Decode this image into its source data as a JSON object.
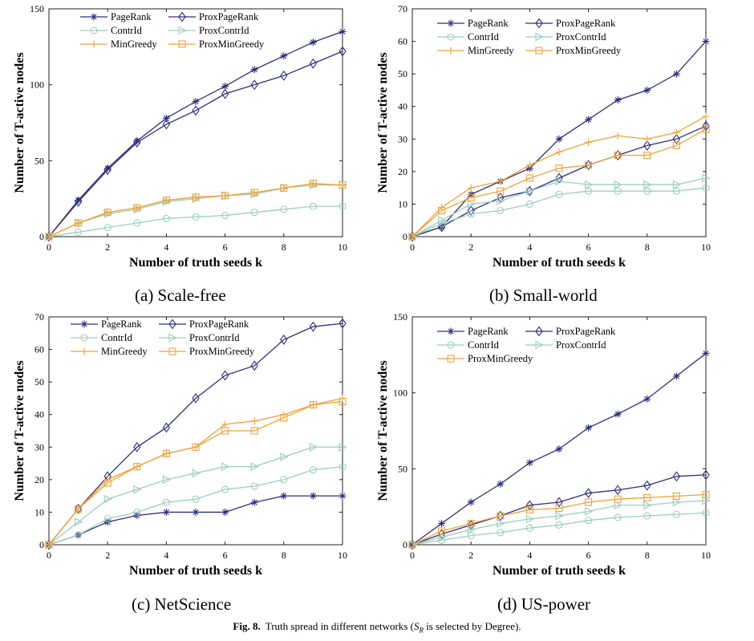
{
  "figure": {
    "label": "Fig. 8.",
    "caption_prefix": "Truth spread in different networks (",
    "caption_var": "S",
    "caption_sub": "R",
    "caption_suffix": " is selected by Degree)."
  },
  "styles": {
    "PageRank": {
      "color": "#2e2e7e",
      "marker": "star"
    },
    "ProxPageRank": {
      "color": "#2e2e7e",
      "marker": "diamond"
    },
    "ContrId": {
      "color": "#9ccfba",
      "marker": "circle"
    },
    "ProxContrId": {
      "color": "#9ccfba",
      "marker": "triangle"
    },
    "MinGreedy": {
      "color": "#f2a23a",
      "marker": "plus"
    },
    "ProxMinGreedy": {
      "color": "#f2a23a",
      "marker": "square"
    }
  },
  "chart_data": [
    {
      "type": "line",
      "caption": "(a) Scale-free",
      "xlabel": "Number of truth seeds k",
      "ylabel": "Number of T-active nodes",
      "x": [
        0,
        1,
        2,
        3,
        4,
        5,
        6,
        7,
        8,
        9,
        10
      ],
      "xticks": [
        0,
        2,
        4,
        6,
        8,
        10
      ],
      "yticks": [
        0,
        50,
        100,
        150
      ],
      "xlim": [
        0,
        10
      ],
      "ylim": [
        0,
        150
      ],
      "legend": {
        "columns": 2,
        "placement": "top-left"
      },
      "series": [
        {
          "name": "PageRank",
          "values": [
            0,
            24,
            45,
            63,
            78,
            89,
            99,
            110,
            119,
            128,
            135
          ]
        },
        {
          "name": "ProxPageRank",
          "values": [
            0,
            23,
            44,
            62,
            74,
            83,
            94,
            100,
            106,
            114,
            122
          ]
        },
        {
          "name": "ContrId",
          "values": [
            0,
            3,
            6,
            9,
            12,
            13,
            14,
            16,
            18,
            20,
            20
          ]
        },
        {
          "name": "ProxContrId",
          "values": [
            0,
            9,
            15,
            18,
            23,
            25,
            27,
            28,
            32,
            34,
            34
          ]
        },
        {
          "name": "MinGreedy",
          "values": [
            0,
            9,
            16,
            19,
            24,
            26,
            27,
            29,
            32,
            35,
            34
          ]
        },
        {
          "name": "ProxMinGreedy",
          "values": [
            0,
            9,
            16,
            19,
            24,
            26,
            27,
            29,
            32,
            35,
            34
          ]
        }
      ]
    },
    {
      "type": "line",
      "caption": "(b) Small-world",
      "xlabel": "Number of truth seeds k",
      "ylabel": "Number of T-active nodes",
      "x": [
        0,
        1,
        2,
        3,
        4,
        5,
        6,
        7,
        8,
        9,
        10
      ],
      "xticks": [
        0,
        2,
        4,
        6,
        8,
        10
      ],
      "yticks": [
        0,
        10,
        20,
        30,
        40,
        50,
        60,
        70
      ],
      "xlim": [
        0,
        10
      ],
      "ylim": [
        0,
        70
      ],
      "legend": {
        "columns": 2,
        "placement": "top-left"
      },
      "series": [
        {
          "name": "PageRank",
          "values": [
            0,
            3,
            13,
            17,
            21,
            30,
            36,
            42,
            45,
            50,
            60
          ]
        },
        {
          "name": "ProxPageRank",
          "values": [
            0,
            3,
            8,
            12,
            14,
            18,
            22,
            25,
            28,
            30,
            34
          ]
        },
        {
          "name": "ContrId",
          "values": [
            0,
            4,
            7,
            8,
            10,
            13,
            14,
            14,
            14,
            14,
            15
          ]
        },
        {
          "name": "ProxContrId",
          "values": [
            0,
            5,
            10,
            11,
            14,
            17,
            16,
            16,
            16,
            16,
            18
          ]
        },
        {
          "name": "MinGreedy",
          "values": [
            0,
            9,
            15,
            17,
            22,
            26,
            29,
            31,
            30,
            32,
            37
          ]
        },
        {
          "name": "ProxMinGreedy",
          "values": [
            0,
            8,
            12,
            14,
            18,
            21,
            22,
            25,
            25,
            28,
            33
          ]
        }
      ]
    },
    {
      "type": "line",
      "caption": "(c) NetScience",
      "xlabel": "Number of truth seeds k",
      "ylabel": "Number of T-active nodes",
      "x": [
        0,
        1,
        2,
        3,
        4,
        5,
        6,
        7,
        8,
        9,
        10
      ],
      "xticks": [
        0,
        2,
        4,
        6,
        8,
        10
      ],
      "yticks": [
        0,
        10,
        20,
        30,
        40,
        50,
        60,
        70
      ],
      "xlim": [
        0,
        10
      ],
      "ylim": [
        0,
        70
      ],
      "legend": {
        "columns": 2,
        "placement": "top-left"
      },
      "series": [
        {
          "name": "PageRank",
          "values": [
            0,
            3,
            7,
            9,
            10,
            10,
            10,
            13,
            15,
            15,
            15
          ]
        },
        {
          "name": "ProxPageRank",
          "values": [
            0,
            11,
            21,
            30,
            36,
            45,
            52,
            55,
            63,
            67,
            68
          ]
        },
        {
          "name": "ContrId",
          "values": [
            0,
            3,
            8,
            10,
            13,
            14,
            17,
            18,
            20,
            23,
            24
          ]
        },
        {
          "name": "ProxContrId",
          "values": [
            0,
            7,
            14,
            17,
            20,
            22,
            24,
            24,
            27,
            30,
            30
          ]
        },
        {
          "name": "MinGreedy",
          "values": [
            0,
            11,
            20,
            24,
            28,
            30,
            37,
            38,
            40,
            43,
            45
          ]
        },
        {
          "name": "ProxMinGreedy",
          "values": [
            0,
            11,
            19,
            24,
            28,
            30,
            35,
            35,
            39,
            43,
            44
          ]
        }
      ]
    },
    {
      "type": "line",
      "caption": "(d) US-power",
      "xlabel": "Number of truth seeds k",
      "ylabel": "Number of T-active nodes",
      "x": [
        0,
        1,
        2,
        3,
        4,
        5,
        6,
        7,
        8,
        9,
        10
      ],
      "xticks": [
        0,
        2,
        4,
        6,
        8,
        10
      ],
      "yticks": [
        0,
        50,
        100,
        150
      ],
      "xlim": [
        0,
        10
      ],
      "ylim": [
        0,
        150
      ],
      "legend": {
        "columns": 2,
        "placement": "top-left"
      },
      "series": [
        {
          "name": "PageRank",
          "values": [
            0,
            14,
            28,
            40,
            54,
            63,
            77,
            86,
            96,
            111,
            126
          ]
        },
        {
          "name": "ProxPageRank",
          "values": [
            0,
            7,
            13,
            19,
            26,
            28,
            34,
            36,
            39,
            45,
            46
          ]
        },
        {
          "name": "ContrId",
          "values": [
            0,
            3,
            6,
            8,
            11,
            13,
            16,
            18,
            19,
            20,
            21
          ]
        },
        {
          "name": "ProxContrId",
          "values": [
            0,
            5,
            10,
            14,
            17,
            19,
            22,
            26,
            26,
            28,
            29
          ]
        },
        {
          "name": "ProxMinGreedy",
          "values": [
            0,
            9,
            14,
            19,
            23,
            24,
            28,
            30,
            31,
            32,
            33
          ]
        }
      ]
    }
  ]
}
